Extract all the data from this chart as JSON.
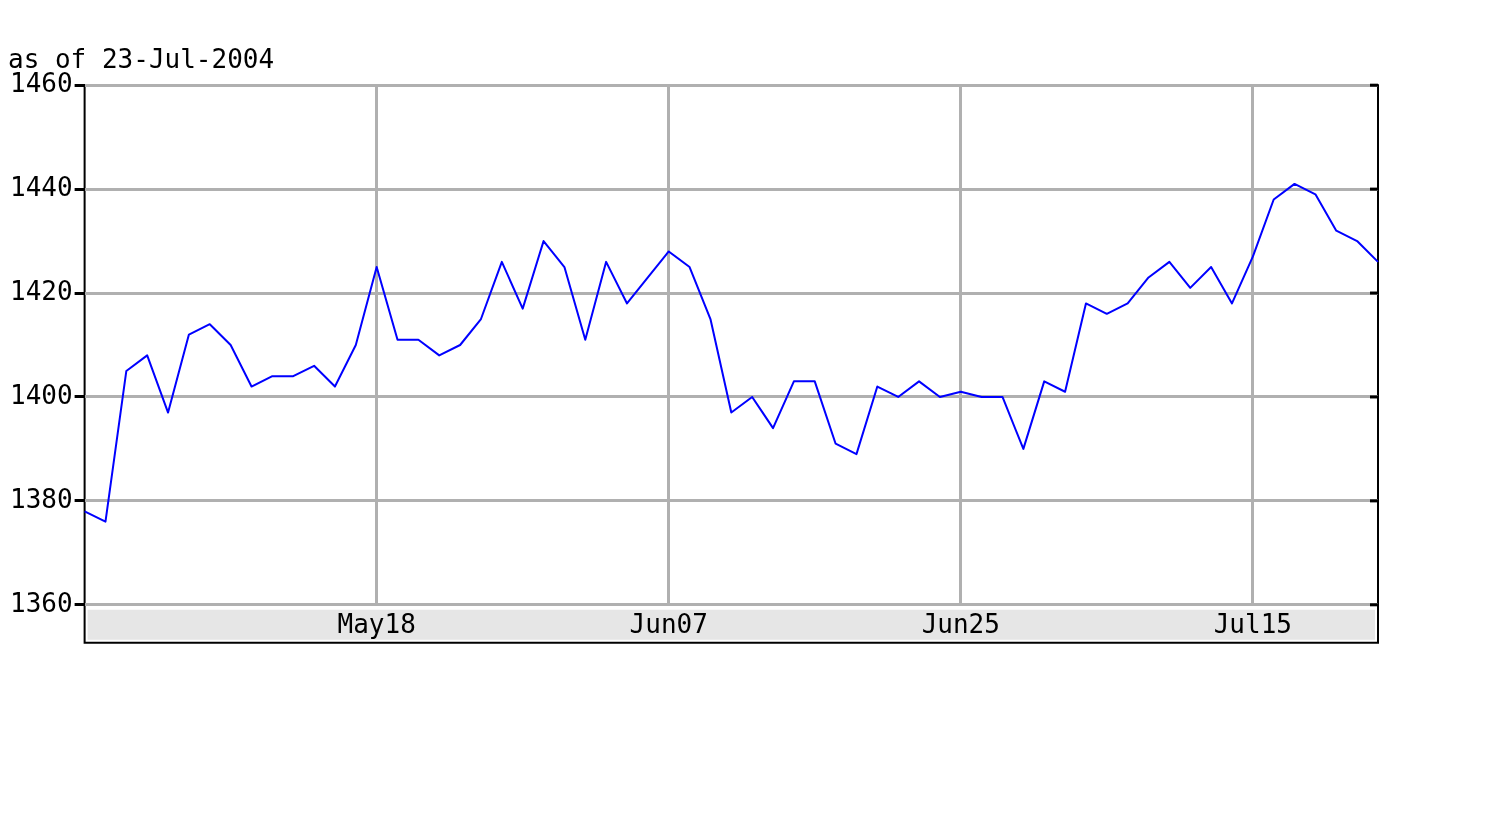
{
  "chart_data": {
    "type": "line",
    "title": "as of 23-Jul-2004",
    "categories": [
      null,
      null,
      null,
      null,
      null,
      null,
      null,
      null,
      null,
      null,
      null,
      null,
      null,
      null,
      "May18",
      null,
      null,
      null,
      null,
      null,
      null,
      null,
      null,
      null,
      null,
      null,
      null,
      null,
      "Jun07",
      null,
      null,
      null,
      null,
      null,
      null,
      null,
      null,
      null,
      null,
      null,
      null,
      null,
      "Jun25",
      null,
      null,
      null,
      null,
      null,
      null,
      null,
      null,
      null,
      null,
      null,
      null,
      null,
      "Jul15",
      null,
      null,
      null,
      null,
      null,
      null
    ],
    "series": [
      {
        "color": "#0000ff",
        "values": [
          1378,
          1376,
          1405,
          1408,
          1397,
          1412,
          1414,
          1410,
          1402,
          1404,
          1404,
          1406,
          1402,
          1410,
          1425,
          1411,
          1411,
          1408,
          1410,
          1415,
          1426,
          1417,
          1430,
          1425,
          1411,
          1426,
          1418,
          1423,
          1428,
          1425,
          1415,
          1397,
          1400,
          1394,
          1403,
          1403,
          1391,
          1389,
          1402,
          1400,
          1403,
          1400,
          1401,
          1400,
          1400,
          1390,
          1403,
          1401,
          1418,
          1416,
          1418,
          1423,
          1426,
          1421,
          1425,
          1418,
          1427,
          1438,
          1441,
          1439,
          1432,
          1430,
          1426
        ]
      }
    ],
    "ylim": [
      1360,
      1460
    ],
    "yticks": [
      1360,
      1380,
      1400,
      1420,
      1440,
      1460
    ],
    "grid": true,
    "marker": "none",
    "line_style": "solid"
  }
}
